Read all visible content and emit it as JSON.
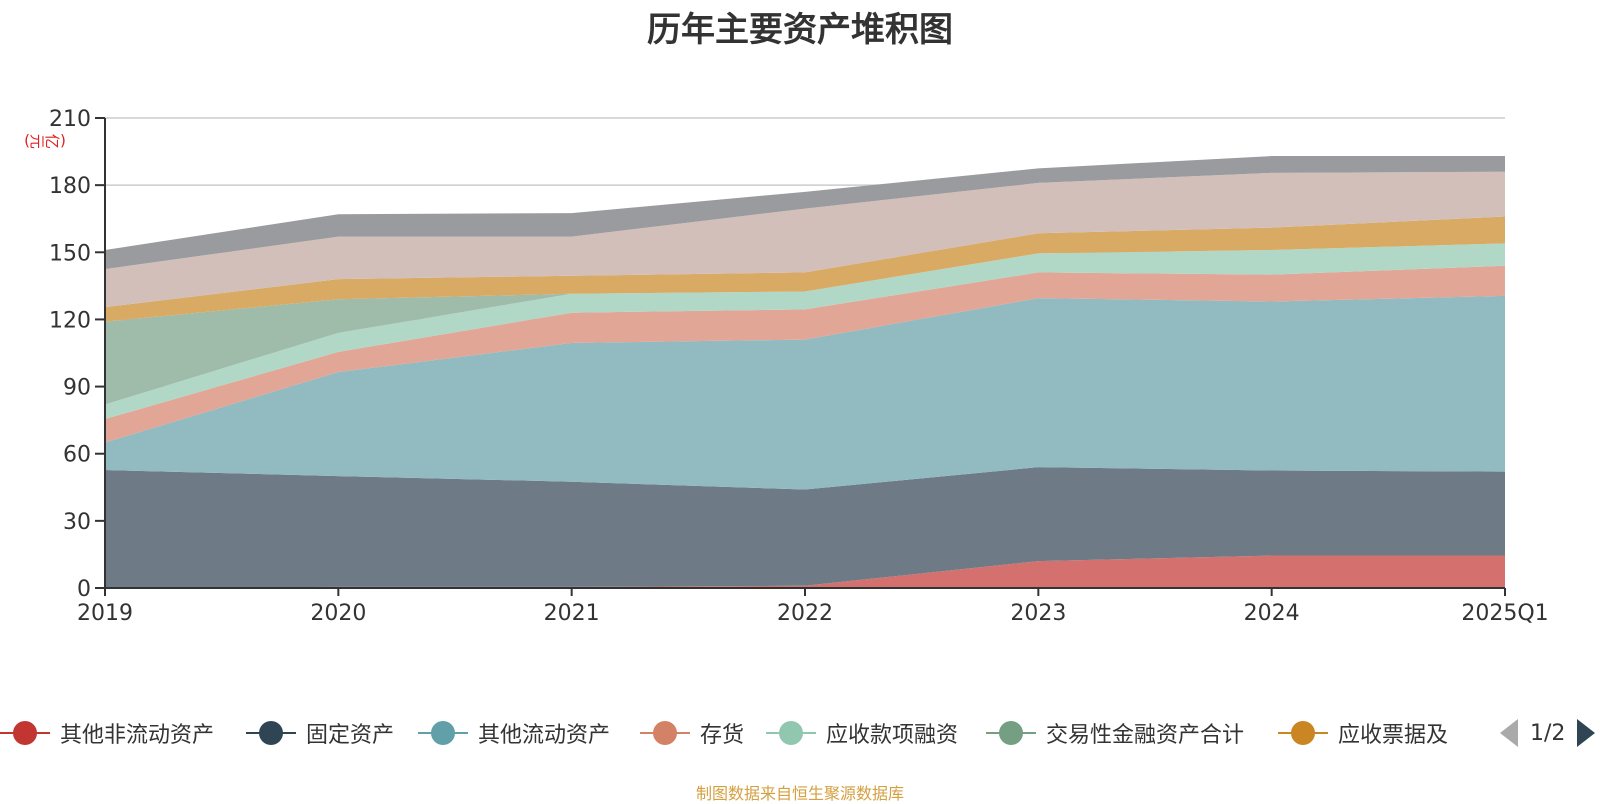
{
  "title": "历年主要资产堆积图",
  "source_note": "制图数据来自恒生聚源数据库",
  "legend_pager": {
    "text": "1/2"
  },
  "chart_data": {
    "type": "area",
    "stacked": true,
    "title": "历年主要资产堆积图",
    "ylabel": "(亿元)",
    "xlabel": "",
    "categories": [
      "2019",
      "2020",
      "2021",
      "2022",
      "2023",
      "2024",
      "2025Q1"
    ],
    "ylim": [
      0,
      210
    ],
    "yticks": [
      0,
      30,
      60,
      90,
      120,
      150,
      180,
      210
    ],
    "grid": true,
    "legend_position": "bottom",
    "series": [
      {
        "name": "其他非流动资产",
        "color": "#c23531",
        "fill": "#d4716e",
        "in_legend": true,
        "values": [
          0,
          0.5,
          0.5,
          1,
          12,
          14.5,
          14.5
        ]
      },
      {
        "name": "固定资产",
        "color": "#2f4554",
        "fill": "#6e7b86",
        "in_legend": true,
        "values": [
          52.7,
          49.5,
          47,
          43,
          42,
          38,
          37.5
        ]
      },
      {
        "name": "其他流动资产",
        "color": "#61a0a8",
        "fill": "#91bac1",
        "in_legend": true,
        "values": [
          12.3,
          46.5,
          62,
          67,
          75.5,
          75.5,
          78.5
        ]
      },
      {
        "name": "存货",
        "color": "#d48265",
        "fill": "#e1a696",
        "in_legend": true,
        "values": [
          10.5,
          9,
          13.5,
          13.5,
          11.5,
          12,
          13.5
        ]
      },
      {
        "name": "应收款项融资",
        "color": "#91c7ae",
        "fill": "#b1d8c7",
        "in_legend": true,
        "values": [
          6.5,
          8.5,
          8.5,
          8,
          8.5,
          11,
          10
        ]
      },
      {
        "name": "交易性金融资产合计",
        "color": "#749f83",
        "fill": "#9fbba9",
        "in_legend": true,
        "values": [
          37,
          15,
          0,
          0,
          0,
          0,
          0
        ]
      },
      {
        "name": "应收票据及",
        "color": "#ca8622",
        "fill": "#d9aa64",
        "in_legend": true,
        "values": [
          6.5,
          9,
          8,
          8.5,
          9,
          10,
          12
        ]
      },
      {
        "name": "",
        "color": "#bda29a",
        "fill": "#d2bfb9",
        "in_legend": false,
        "values": [
          17,
          19,
          17.5,
          28.5,
          22.5,
          24.5,
          20
        ]
      },
      {
        "name": "",
        "color": "#6e7074",
        "fill": "#9a9b9f",
        "in_legend": false,
        "values": [
          8.5,
          10,
          10.5,
          7.5,
          6.5,
          7.5,
          7
        ]
      }
    ]
  }
}
